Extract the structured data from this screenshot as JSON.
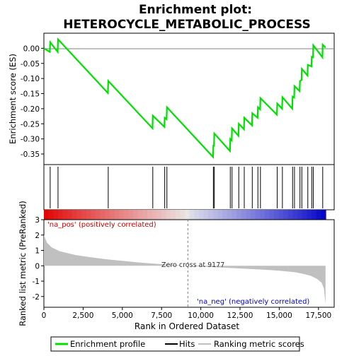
{
  "title_line1": "Enrichment plot:",
  "title_line2": "HETEROCYCLE_METABOLIC_PROCESS",
  "colors": {
    "es_line": "#00e000",
    "hits": "#000000",
    "metric_fill": "#c0c0c0",
    "zero_line": "#808080",
    "pos_label": "#cc0000",
    "neg_label": "#0000cc"
  },
  "chart_data": {
    "type": "line",
    "top_panel": {
      "ylabel": "Enrichment score (ES)",
      "ylim": [
        -0.385,
        0.05
      ],
      "yticks": [
        0.0,
        -0.05,
        -0.1,
        -0.15,
        -0.2,
        -0.25,
        -0.3,
        -0.35
      ],
      "ytick_labels": [
        "0.00",
        "-0.05",
        "-0.10",
        "-0.15",
        "-0.20",
        "-0.25",
        "-0.30",
        "-0.35"
      ],
      "es_points": [
        [
          0,
          0.0
        ],
        [
          380,
          -0.012
        ],
        [
          400,
          0.02
        ],
        [
          880,
          -0.012
        ],
        [
          900,
          0.03
        ],
        [
          4080,
          -0.148
        ],
        [
          4100,
          -0.108
        ],
        [
          6920,
          -0.265
        ],
        [
          6940,
          -0.223
        ],
        [
          7680,
          -0.26
        ],
        [
          7700,
          -0.23
        ],
        [
          7820,
          -0.235
        ],
        [
          7840,
          -0.195
        ],
        [
          10780,
          -0.36
        ],
        [
          10800,
          -0.32
        ],
        [
          10840,
          -0.325
        ],
        [
          10860,
          -0.282
        ],
        [
          11860,
          -0.34
        ],
        [
          11880,
          -0.3
        ],
        [
          11970,
          -0.305
        ],
        [
          11990,
          -0.265
        ],
        [
          12400,
          -0.29
        ],
        [
          12420,
          -0.25
        ],
        [
          12750,
          -0.268
        ],
        [
          12770,
          -0.23
        ],
        [
          13260,
          -0.255
        ],
        [
          13280,
          -0.215
        ],
        [
          13620,
          -0.23
        ],
        [
          13640,
          -0.195
        ],
        [
          13780,
          -0.202
        ],
        [
          13800,
          -0.165
        ],
        [
          14850,
          -0.22
        ],
        [
          14870,
          -0.183
        ],
        [
          15180,
          -0.2
        ],
        [
          15200,
          -0.162
        ],
        [
          15830,
          -0.2
        ],
        [
          15850,
          -0.16
        ],
        [
          15950,
          -0.163
        ],
        [
          15970,
          -0.125
        ],
        [
          16300,
          -0.142
        ],
        [
          16320,
          -0.108
        ],
        [
          16420,
          -0.105
        ],
        [
          16440,
          -0.068
        ],
        [
          16800,
          -0.09
        ],
        [
          16820,
          -0.055
        ],
        [
          17050,
          -0.06
        ],
        [
          17070,
          -0.028
        ],
        [
          17150,
          -0.03
        ],
        [
          17170,
          0.01
        ],
        [
          17750,
          -0.03
        ],
        [
          17770,
          0.012
        ],
        [
          17950,
          0.002
        ]
      ]
    },
    "hits": [
      400,
      900,
      4100,
      6940,
      7700,
      7840,
      10800,
      10860,
      11880,
      11990,
      12420,
      12770,
      13280,
      13640,
      13800,
      14870,
      15200,
      15850,
      15970,
      16320,
      16440,
      16820,
      17070,
      17170,
      17770
    ],
    "metric_panel": {
      "ylabel": "Ranked list metric (PreRanked)",
      "xlabel": "Rank in Ordered Dataset",
      "ylim": [
        -2.7,
        3.0
      ],
      "yticks": [
        3,
        2,
        1,
        0,
        -1,
        -2
      ],
      "ytick_labels": [
        "3",
        "2",
        "1",
        "0",
        "-1",
        "-2"
      ],
      "xlim": [
        0,
        18500
      ],
      "xticks": [
        0,
        2500,
        5000,
        7500,
        10000,
        12500,
        15000,
        17500
      ],
      "xtick_labels": [
        "0",
        "2,500",
        "5,000",
        "7,500",
        "10,000",
        "12,500",
        "15,000",
        "17,500"
      ],
      "metric_points": [
        [
          0,
          2.0
        ],
        [
          200,
          1.5
        ],
        [
          500,
          1.2
        ],
        [
          1000,
          0.95
        ],
        [
          2000,
          0.7
        ],
        [
          3000,
          0.55
        ],
        [
          4000,
          0.42
        ],
        [
          5000,
          0.32
        ],
        [
          6000,
          0.22
        ],
        [
          7000,
          0.14
        ],
        [
          8000,
          0.07
        ],
        [
          9177,
          0.0
        ],
        [
          10000,
          -0.05
        ],
        [
          11000,
          -0.1
        ],
        [
          12000,
          -0.15
        ],
        [
          13000,
          -0.2
        ],
        [
          14000,
          -0.25
        ],
        [
          15000,
          -0.32
        ],
        [
          16000,
          -0.42
        ],
        [
          16500,
          -0.52
        ],
        [
          17000,
          -0.65
        ],
        [
          17400,
          -0.85
        ],
        [
          17700,
          -1.1
        ],
        [
          17850,
          -1.5
        ],
        [
          17950,
          -2.5
        ]
      ],
      "zero_cross": 9177,
      "zero_cross_label": "Zero cross at 9177",
      "pos_label": "'na_pos' (positively correlated)",
      "neg_label": "'na_neg' (negatively correlated)"
    },
    "dataset_size": 17960
  },
  "legend": {
    "items": [
      {
        "label": "Enrichment profile",
        "color": "#00e000"
      },
      {
        "label": "Hits",
        "color": "#000000"
      },
      {
        "label": "Ranking metric scores",
        "color": "#c0c0c0"
      }
    ]
  }
}
